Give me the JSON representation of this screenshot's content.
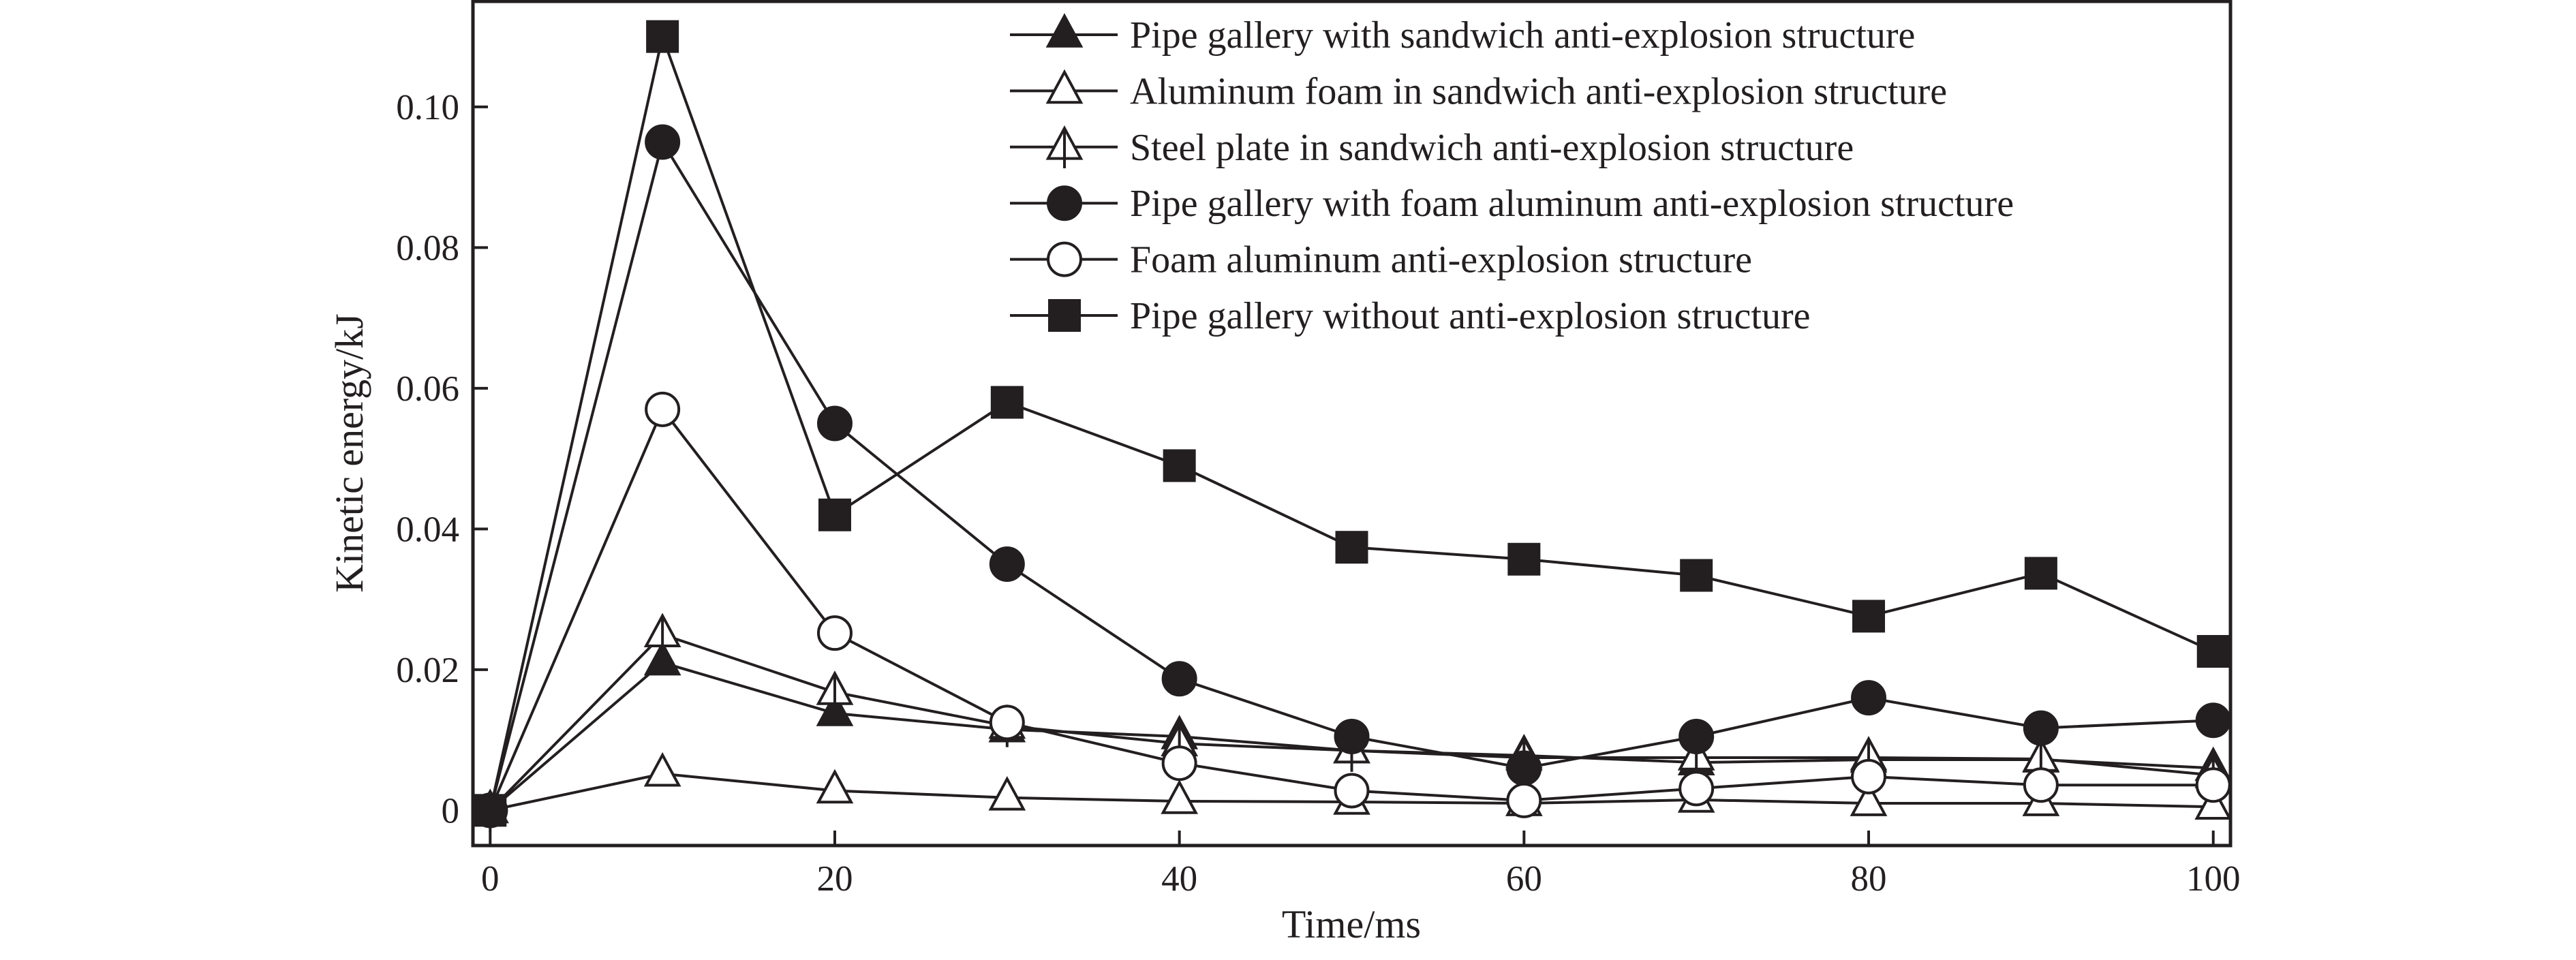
{
  "chart_data": {
    "type": "line",
    "title": "",
    "xlabel": "Time/ms",
    "ylabel": "Kinetic energy/kJ",
    "xlim": [
      -1,
      101
    ],
    "ylim": [
      -0.005,
      0.115
    ],
    "xticks": [
      0,
      20,
      40,
      60,
      80,
      100
    ],
    "xtick_labels": [
      "0",
      "20",
      "40",
      "60",
      "80",
      "100"
    ],
    "yticks": [
      0,
      0.02,
      0.04,
      0.06,
      0.08,
      0.1
    ],
    "ytick_labels": [
      "0",
      "0.02",
      "0.04",
      "0.06",
      "0.08",
      "0.10"
    ],
    "grid": false,
    "legend_position": "top-right",
    "x": [
      0,
      10,
      20,
      30,
      40,
      50,
      60,
      70,
      80,
      90,
      100
    ],
    "series": [
      {
        "name": "Pipe gallery with sandwich anti-explosion structure",
        "marker": "triangle-filled",
        "values": [
          0,
          0.021,
          0.0138,
          0.0115,
          0.0105,
          0.0085,
          0.0078,
          0.0068,
          0.0072,
          0.0072,
          0.006
        ]
      },
      {
        "name": "Aluminum foam in sandwich anti-explosion structure",
        "marker": "triangle-open",
        "values": [
          0,
          0.0052,
          0.0028,
          0.0018,
          0.0013,
          0.0012,
          0.001,
          0.0015,
          0.001,
          0.001,
          0.0005
        ]
      },
      {
        "name": "Steel plate in sandwich anti-explosion structure",
        "marker": "triangle-open-bar",
        "values": [
          0,
          0.025,
          0.0168,
          0.012,
          0.0095,
          0.0085,
          0.0075,
          0.0075,
          0.0075,
          0.0073,
          0.005
        ]
      },
      {
        "name": "Pipe gallery with foam aluminum anti-explosion structure",
        "marker": "circle-filled",
        "values": [
          0,
          0.095,
          0.055,
          0.035,
          0.0187,
          0.0105,
          0.006,
          0.0105,
          0.016,
          0.0117,
          0.0128
        ]
      },
      {
        "name": "Foam aluminum anti-explosion structure",
        "marker": "circle-open",
        "values": [
          0,
          0.057,
          0.0252,
          0.0125,
          0.0067,
          0.0028,
          0.0014,
          0.0031,
          0.0048,
          0.0036,
          0.0036
        ]
      },
      {
        "name": "Pipe gallery without anti-explosion structure",
        "marker": "square-filled",
        "values": [
          0,
          0.11,
          0.042,
          0.058,
          0.049,
          0.0374,
          0.0357,
          0.0334,
          0.0276,
          0.0337,
          0.0226
        ]
      }
    ],
    "colors": {
      "ink": "#231f20",
      "background": "#ffffff"
    }
  }
}
